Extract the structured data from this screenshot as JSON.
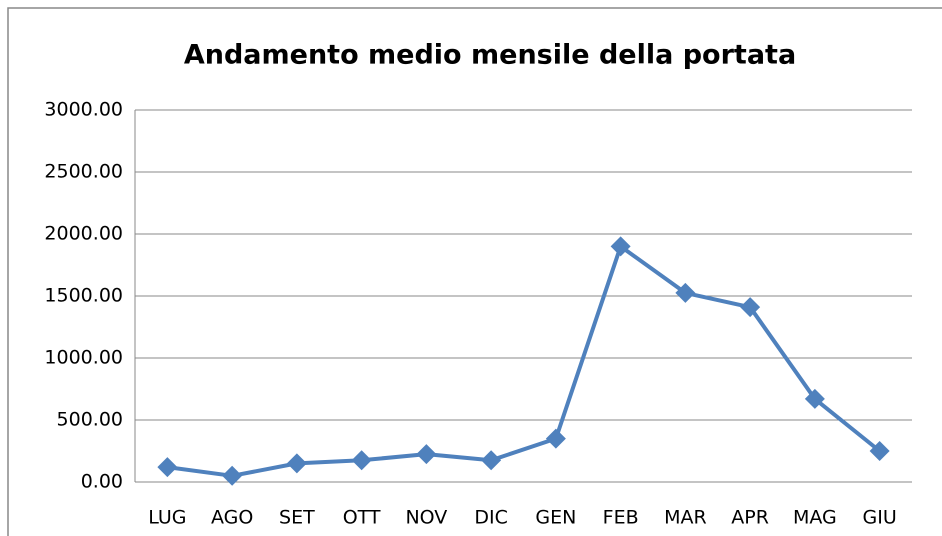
{
  "chart_data": {
    "type": "line",
    "title": "Andamento medio mensile della portata",
    "categories": [
      "LUG",
      "AGO",
      "SET",
      "OTT",
      "NOV",
      "DIC",
      "GEN",
      "FEB",
      "MAR",
      "APR",
      "MAG",
      "GIU"
    ],
    "series": [
      {
        "name": "Portata",
        "color": "#4f81bd",
        "values": [
          120,
          50,
          150,
          175,
          225,
          175,
          350,
          1900,
          1525,
          1410,
          670,
          250
        ]
      }
    ],
    "ylim": [
      0,
      3000
    ],
    "yticks": [
      {
        "value": 0,
        "label": "0.00"
      },
      {
        "value": 500,
        "label": "500.00"
      },
      {
        "value": 1000,
        "label": "1000.00"
      },
      {
        "value": 1500,
        "label": "1500.00"
      },
      {
        "value": 2000,
        "label": "2000.00"
      },
      {
        "value": 2500,
        "label": "2500.00"
      },
      {
        "value": 3000,
        "label": "3000.00"
      }
    ],
    "grid": true
  }
}
